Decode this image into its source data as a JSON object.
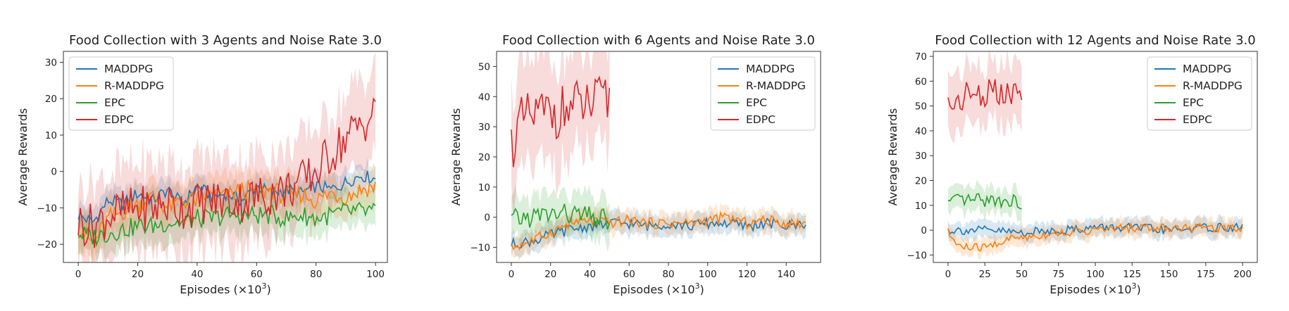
{
  "chart_data": [
    {
      "type": "line",
      "title": "Food Collection with 3 Agents and Noise Rate 3.0",
      "xlabel_main": "Episodes (",
      "xlabel_unit": "×10",
      "xlabel_exp": "3",
      "xlabel_close": ")",
      "ylabel": "Average Rewards",
      "xlim": [
        -5,
        104
      ],
      "ylim": [
        -25,
        33
      ],
      "xticks": [
        0,
        20,
        40,
        60,
        80,
        100
      ],
      "yticks": [
        -20,
        -10,
        0,
        10,
        20,
        30
      ],
      "legend_position": "upper-left",
      "series": [
        {
          "name": "MADDPG",
          "color": "#1f77b4",
          "x": [
            0,
            5,
            10,
            15,
            20,
            25,
            30,
            35,
            40,
            45,
            50,
            55,
            60,
            65,
            70,
            75,
            80,
            85,
            90,
            95,
            100
          ],
          "y": [
            -12,
            -14,
            -8,
            -9,
            -6,
            -8,
            -5,
            -9,
            -4,
            -7,
            -6,
            -8,
            -4,
            -6,
            -5,
            -6,
            -4,
            -5,
            -3,
            -1,
            -2
          ],
          "band": 2
        },
        {
          "name": "R-MADDPG",
          "color": "#ff7f0e",
          "x": [
            0,
            5,
            10,
            15,
            20,
            25,
            30,
            35,
            40,
            45,
            50,
            55,
            60,
            65,
            70,
            75,
            80,
            85,
            90,
            95,
            100
          ],
          "y": [
            -15,
            -20,
            -13,
            -11,
            -9,
            -7,
            -10,
            -8,
            -8,
            -6,
            -7,
            -5,
            -6,
            -5,
            -7,
            -6,
            -8,
            -6,
            -7,
            -5,
            -4
          ],
          "band": 3
        },
        {
          "name": "EPC",
          "color": "#2ca02c",
          "x": [
            0,
            5,
            10,
            15,
            20,
            25,
            30,
            35,
            40,
            45,
            50,
            55,
            60,
            65,
            70,
            75,
            80,
            85,
            90,
            95,
            100
          ],
          "y": [
            -17,
            -18,
            -17,
            -16,
            -15,
            -15,
            -14,
            -14,
            -13,
            -13,
            -12,
            -12,
            -12,
            -12,
            -13,
            -12,
            -13,
            -12,
            -11,
            -11,
            -11
          ],
          "band": 3
        },
        {
          "name": "EDPC",
          "color": "#d62728",
          "x": [
            0,
            5,
            10,
            15,
            20,
            25,
            30,
            35,
            40,
            45,
            50,
            55,
            60,
            65,
            70,
            75,
            80,
            85,
            90,
            95,
            100
          ],
          "y": [
            -14,
            -15,
            -12,
            -11,
            -10,
            -10,
            -9,
            -10,
            -9,
            -8,
            -8,
            -8,
            -7,
            -6,
            -5,
            -3,
            0,
            5,
            9,
            13,
            16
          ],
          "band": 7
        }
      ]
    },
    {
      "type": "line",
      "title": "Food Collection with 6 Agents and Noise Rate 3.0",
      "xlabel_main": "Episodes (",
      "xlabel_unit": "×10",
      "xlabel_exp": "3",
      "xlabel_close": ")",
      "ylabel": "Average Rewards",
      "xlim": [
        -7.5,
        157.5
      ],
      "ylim": [
        -15,
        55
      ],
      "xticks": [
        0,
        20,
        40,
        60,
        80,
        100,
        120,
        140
      ],
      "yticks": [
        -10,
        0,
        10,
        20,
        30,
        40,
        50
      ],
      "legend_position": "upper-right",
      "series": [
        {
          "name": "MADDPG",
          "color": "#1f77b4",
          "x": [
            0,
            10,
            20,
            30,
            40,
            50,
            60,
            70,
            80,
            90,
            100,
            110,
            120,
            130,
            140,
            150
          ],
          "y": [
            -9,
            -8,
            -6,
            -4,
            -3,
            -2,
            -2,
            -3,
            -2,
            -3,
            -2,
            -2,
            -3,
            -2,
            -3,
            -2
          ],
          "band": 2
        },
        {
          "name": "R-MADDPG",
          "color": "#ff7f0e",
          "x": [
            0,
            10,
            20,
            30,
            40,
            50,
            60,
            70,
            80,
            90,
            100,
            110,
            120,
            130,
            140,
            150
          ],
          "y": [
            -10,
            -8,
            -5,
            -2,
            -1,
            -2,
            -1,
            -2,
            -2,
            -2,
            -1,
            0,
            -2,
            -1,
            -2,
            -2
          ],
          "band": 2
        },
        {
          "name": "EPC",
          "color": "#2ca02c",
          "x": [
            0,
            10,
            20,
            30,
            40,
            50
          ],
          "y": [
            -1,
            0,
            1,
            1,
            0,
            -1
          ],
          "band": 4
        },
        {
          "name": "EDPC",
          "color": "#d62728",
          "x": [
            0,
            5,
            10,
            15,
            20,
            25,
            30,
            35,
            40,
            45,
            50
          ],
          "y": [
            24,
            31,
            33,
            34,
            35,
            35,
            36,
            37,
            37,
            38,
            38
          ],
          "band": 10
        }
      ]
    },
    {
      "type": "line",
      "title": "Food Collection with 12 Agents and Noise Rate 3.0",
      "xlabel_main": "Episodes (",
      "xlabel_unit": "×10",
      "xlabel_exp": "3",
      "xlabel_close": ")",
      "ylabel": "Average Rewards",
      "xlim": [
        -10,
        210
      ],
      "ylim": [
        -13,
        72
      ],
      "xticks": [
        0,
        25,
        50,
        75,
        100,
        125,
        150,
        175,
        200
      ],
      "yticks": [
        -10,
        0,
        10,
        20,
        30,
        40,
        50,
        60,
        70
      ],
      "legend_position": "upper-right",
      "series": [
        {
          "name": "MADDPG",
          "color": "#1f77b4",
          "x": [
            0,
            25,
            50,
            75,
            100,
            125,
            150,
            175,
            200
          ],
          "y": [
            0,
            0,
            -1,
            0,
            1,
            1,
            0,
            1,
            1
          ],
          "band": 2
        },
        {
          "name": "R-MADDPG",
          "color": "#ff7f0e",
          "x": [
            0,
            5,
            10,
            15,
            20,
            25,
            30,
            35,
            40,
            45,
            50,
            75,
            100,
            125,
            150,
            175,
            200
          ],
          "y": [
            -1,
            -5,
            -7,
            -7,
            -7,
            -7,
            -6,
            -5,
            -4,
            -3,
            -3,
            -1,
            0,
            1,
            1,
            1,
            1
          ],
          "band": 2
        },
        {
          "name": "EPC",
          "color": "#2ca02c",
          "x": [
            0,
            10,
            20,
            30,
            40,
            50
          ],
          "y": [
            11,
            12,
            12,
            12,
            12,
            11
          ],
          "band": 3
        },
        {
          "name": "EDPC",
          "color": "#d62728",
          "x": [
            0,
            10,
            20,
            30,
            40,
            50
          ],
          "y": [
            50,
            54,
            55,
            55,
            54,
            54
          ],
          "band": 7
        }
      ]
    }
  ]
}
